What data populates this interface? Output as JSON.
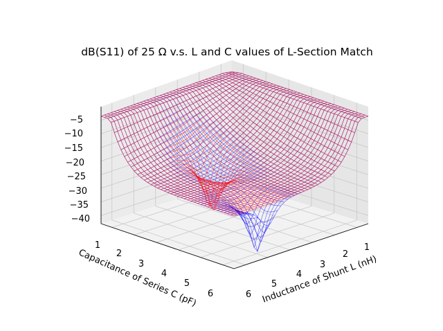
{
  "chart_data": {
    "type": "surface3d",
    "title": "dB(S11) of 25 Ω v.s. L and C values of L-Section Match",
    "xlabel": "Inductance of Shunt L (nH)",
    "ylabel": "Capacitance of Series C (pF)",
    "zlabel": "",
    "x_ticks": [
      "1",
      "2",
      "3",
      "4",
      "5",
      "6"
    ],
    "y_ticks": [
      "1",
      "2",
      "3",
      "4",
      "5",
      "6"
    ],
    "z_ticks": [
      "−5",
      "−10",
      "−15",
      "−20",
      "−25",
      "−30",
      "−35",
      "−40"
    ],
    "xlim": [
      0.5,
      6.5
    ],
    "ylim": [
      0.5,
      6.5
    ],
    "zlim": [
      -43,
      0
    ],
    "grid": true,
    "series": [
      {
        "color": "#0000ff",
        "minimum_db": -42,
        "minimum_at": {
          "L_nH": 5.0,
          "C_pF": 6.0
        }
      },
      {
        "color": "#ff0000",
        "minimum_db": -42,
        "minimum_at": {
          "L_nH": 4.0,
          "C_pF": 3.0
        }
      }
    ]
  }
}
